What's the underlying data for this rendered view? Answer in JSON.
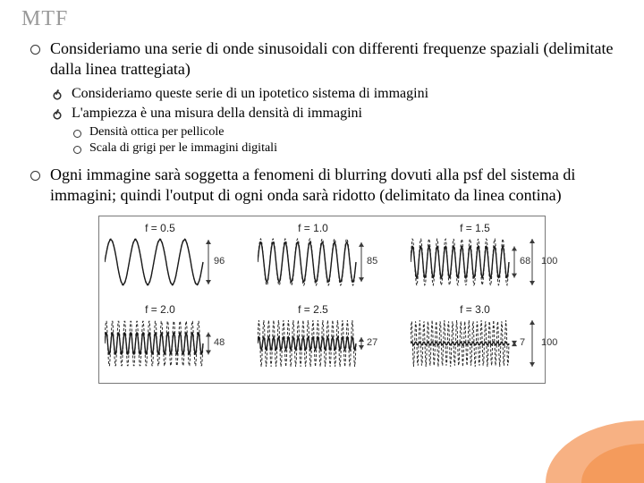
{
  "title": "MTF",
  "bullets": {
    "b1": "Consideriamo  una serie di onde sinusoidali con differenti frequenze spaziali (delimitate dalla linea trattegiata)",
    "b1a": "Consideriamo queste serie di un ipotetico sistema  di immagini",
    "b1b": "L'ampiezza è una misura  della densità di immagini",
    "b1b1": "Densità ottica per pellicole",
    "b1b2": "Scala di grigi per le immagini digitali",
    "b2": "Ogni immagine sarà soggetta a fenomeni di blurring dovuti alla psf del sistema di immagini; quindi l'output di ogni onda sarà ridotto (delimitato da linea contina)"
  },
  "diagram": {
    "ref_amp": "100",
    "row1": [
      {
        "f_label": "f = 0.5",
        "freq": 0.5,
        "amp_label": "96",
        "amp": 96
      },
      {
        "f_label": "f = 1.0",
        "freq": 1.0,
        "amp_label": "85",
        "amp": 85
      },
      {
        "f_label": "f = 1.5",
        "freq": 1.5,
        "amp_label": "68",
        "amp": 68
      }
    ],
    "row2": [
      {
        "f_label": "f = 2.0",
        "freq": 2.0,
        "amp_label": "48",
        "amp": 48
      },
      {
        "f_label": "f = 2.5",
        "freq": 2.5,
        "amp_label": "27",
        "amp": 27
      },
      {
        "f_label": "f = 3.0",
        "freq": 3.0,
        "amp_label": "7",
        "amp": 7
      }
    ],
    "wave_box": {
      "w": 110,
      "h": 58
    },
    "colors": {
      "dashed": "#2a2a2a",
      "solid": "#1a1a1a",
      "arrow": "#3a3a3a"
    }
  },
  "colors": {
    "title": "#999999",
    "text": "#000000",
    "corner_light": "#f7b183",
    "corner_dark": "#f49b5c",
    "border": "#787878"
  }
}
